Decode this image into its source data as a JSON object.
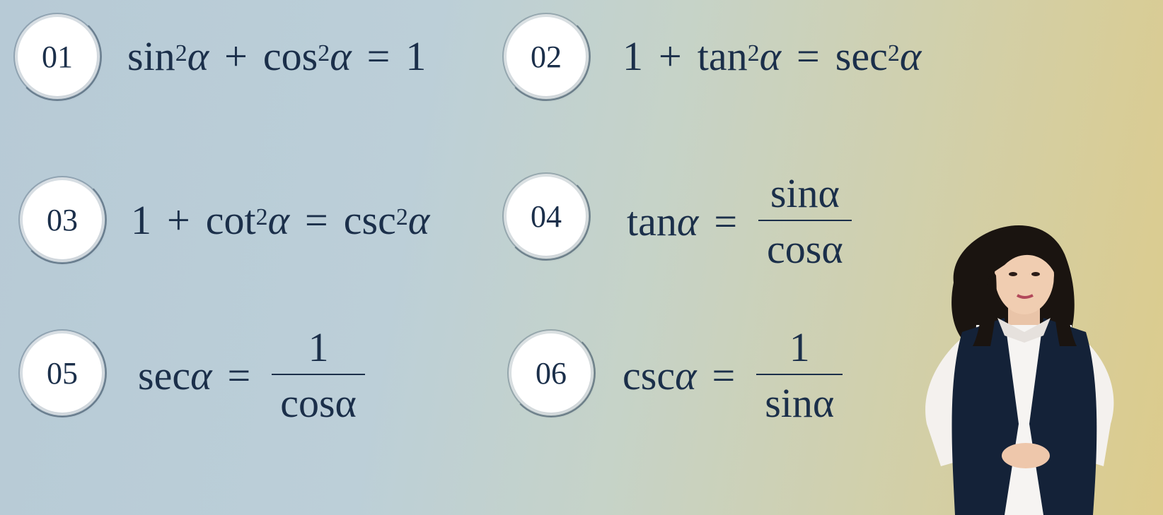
{
  "badges": [
    "01",
    "02",
    "03",
    "04",
    "05",
    "06"
  ],
  "formulas": {
    "f01": {
      "sin": "sin",
      "exp": "2",
      "alpha": "α",
      "plus": "+",
      "cos": "cos",
      "eq": "=",
      "one": "1"
    },
    "f02": {
      "one": "1",
      "plus": "+",
      "tan": "tan",
      "exp": "2",
      "alpha": "α",
      "eq": "=",
      "sec": "sec"
    },
    "f03": {
      "one": "1",
      "plus": "+",
      "cot": "cot",
      "exp": "2",
      "alpha": "α",
      "eq": "=",
      "csc": "csc"
    },
    "f04": {
      "tan": "tan",
      "alpha": "α",
      "eq": "=",
      "num": "sinα",
      "den": "cosα"
    },
    "f05": {
      "sec": "sec",
      "alpha": "α",
      "eq": "=",
      "num": "1",
      "den": "cosα"
    },
    "f06": {
      "csc": "csc",
      "alpha": "α",
      "eq": "=",
      "num": "1",
      "den": "sinα"
    }
  },
  "colors": {
    "text": "#1b2f4a",
    "bg_left": "#b7cad6",
    "bg_right": "#dccb8c"
  }
}
